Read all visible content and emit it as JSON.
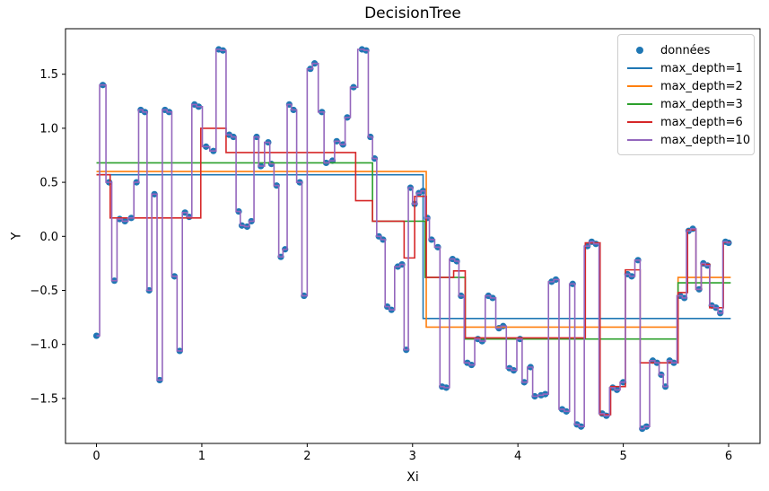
{
  "chart_data": {
    "type": "scatter+step-line",
    "title": "DecisionTree",
    "xlabel": "Xi",
    "ylabel": "Y",
    "x_ticks": [
      0,
      1,
      2,
      3,
      4,
      5,
      6
    ],
    "y_ticks": [
      -1.5,
      -1.0,
      -0.5,
      0.0,
      0.5,
      1.0,
      1.5
    ],
    "xlim": [
      -0.294,
      6.298
    ],
    "ylim": [
      -1.916,
      1.921
    ],
    "grid": false,
    "legend_position": "upper right",
    "scatter": {
      "name": "données",
      "color": "#1f77b4",
      "x": [
        0.0,
        0.06,
        0.12,
        0.17,
        0.22,
        0.27,
        0.33,
        0.38,
        0.42,
        0.46,
        0.5,
        0.55,
        0.6,
        0.65,
        0.69,
        0.74,
        0.79,
        0.84,
        0.88,
        0.93,
        0.97,
        1.04,
        1.11,
        1.16,
        1.2,
        1.26,
        1.3,
        1.35,
        1.38,
        1.43,
        1.47,
        1.52,
        1.56,
        1.63,
        1.66,
        1.71,
        1.75,
        1.79,
        1.83,
        1.87,
        1.93,
        1.97,
        2.03,
        2.07,
        2.14,
        2.18,
        2.24,
        2.28,
        2.34,
        2.38,
        2.44,
        2.52,
        2.56,
        2.6,
        2.64,
        2.68,
        2.72,
        2.76,
        2.8,
        2.86,
        2.9,
        2.94,
        2.98,
        3.02,
        3.06,
        3.1,
        3.14,
        3.18,
        3.24,
        3.28,
        3.32,
        3.38,
        3.42,
        3.46,
        3.52,
        3.56,
        3.62,
        3.66,
        3.72,
        3.76,
        3.82,
        3.86,
        3.92,
        3.96,
        4.02,
        4.06,
        4.12,
        4.16,
        4.22,
        4.26,
        4.32,
        4.36,
        4.42,
        4.46,
        4.52,
        4.56,
        4.6,
        4.66,
        4.7,
        4.74,
        4.8,
        4.84,
        4.9,
        4.94,
        5.0,
        5.04,
        5.08,
        5.14,
        5.18,
        5.22,
        5.28,
        5.32,
        5.36,
        5.4,
        5.44,
        5.48,
        5.54,
        5.58,
        5.62,
        5.66,
        5.72,
        5.76,
        5.8,
        5.84,
        5.88,
        5.92,
        5.97,
        6.0
      ],
      "y": [
        -0.92,
        1.4,
        0.5,
        -0.41,
        0.16,
        0.14,
        0.17,
        0.5,
        1.17,
        1.15,
        -0.5,
        0.39,
        -1.33,
        1.17,
        1.15,
        -0.37,
        -1.06,
        0.22,
        0.18,
        1.22,
        1.2,
        0.83,
        0.79,
        1.73,
        1.72,
        0.94,
        0.92,
        0.23,
        0.1,
        0.09,
        0.14,
        0.92,
        0.65,
        0.87,
        0.67,
        0.47,
        -0.19,
        -0.12,
        1.22,
        1.17,
        0.5,
        -0.55,
        1.55,
        1.6,
        1.15,
        0.68,
        0.7,
        0.88,
        0.85,
        1.1,
        1.38,
        1.73,
        1.72,
        0.92,
        0.72,
        0.0,
        -0.03,
        -0.65,
        -0.68,
        -0.28,
        -0.26,
        -1.05,
        0.45,
        0.3,
        0.4,
        0.42,
        0.17,
        -0.03,
        -0.1,
        -1.39,
        -1.4,
        -0.21,
        -0.23,
        -0.55,
        -1.17,
        -1.19,
        -0.95,
        -0.97,
        -0.55,
        -0.57,
        -0.85,
        -0.83,
        -1.22,
        -1.24,
        -0.95,
        -1.35,
        -1.21,
        -1.48,
        -1.47,
        -1.46,
        -0.42,
        -0.4,
        -1.6,
        -1.62,
        -0.44,
        -1.74,
        -1.76,
        -0.09,
        -0.05,
        -0.07,
        -1.64,
        -1.66,
        -1.4,
        -1.42,
        -1.35,
        -0.35,
        -0.37,
        -0.22,
        -1.78,
        -1.76,
        -1.15,
        -1.17,
        -1.28,
        -1.39,
        -1.15,
        -1.17,
        -0.55,
        -0.57,
        0.05,
        0.07,
        -0.49,
        -0.25,
        -0.27,
        -0.64,
        -0.66,
        -0.71,
        -0.05,
        -0.06
      ]
    },
    "series": [
      {
        "name": "max_depth=1",
        "color": "#1f77b4",
        "segments": [
          [
            0.0,
            3.1,
            0.57
          ],
          [
            3.1,
            6.02,
            -0.76
          ]
        ]
      },
      {
        "name": "max_depth=2",
        "color": "#ff7f0e",
        "segments": [
          [
            0.0,
            3.13,
            0.6
          ],
          [
            3.13,
            5.52,
            -0.84
          ],
          [
            5.52,
            6.02,
            -0.38
          ]
        ]
      },
      {
        "name": "max_depth=3",
        "color": "#2ca02c",
        "segments": [
          [
            0.0,
            2.62,
            0.68
          ],
          [
            2.62,
            3.12,
            0.14
          ],
          [
            3.12,
            3.5,
            -0.38
          ],
          [
            3.5,
            5.52,
            -0.95
          ],
          [
            5.52,
            6.02,
            -0.43
          ]
        ]
      },
      {
        "name": "max_depth=6",
        "color": "#d62728",
        "segments": [
          [
            0.0,
            0.13,
            0.57
          ],
          [
            0.13,
            0.99,
            0.17
          ],
          [
            0.99,
            1.23,
            1.0
          ],
          [
            1.23,
            2.46,
            0.775
          ],
          [
            2.46,
            2.62,
            0.33
          ],
          [
            2.62,
            2.92,
            0.14
          ],
          [
            2.92,
            3.02,
            -0.2
          ],
          [
            3.02,
            3.13,
            0.37
          ],
          [
            3.13,
            3.39,
            -0.38
          ],
          [
            3.39,
            3.5,
            -0.32
          ],
          [
            3.5,
            4.64,
            -0.94
          ],
          [
            4.64,
            4.78,
            -0.06
          ],
          [
            4.78,
            4.88,
            -1.65
          ],
          [
            4.88,
            5.02,
            -1.39
          ],
          [
            5.02,
            5.16,
            -0.31
          ],
          [
            5.16,
            5.52,
            -1.17
          ],
          [
            5.52,
            5.61,
            -0.52
          ],
          [
            5.61,
            5.69,
            0.06
          ],
          [
            5.69,
            5.74,
            -0.49
          ],
          [
            5.74,
            5.82,
            -0.26
          ],
          [
            5.82,
            5.95,
            -0.66
          ],
          [
            5.95,
            6.02,
            -0.055
          ]
        ]
      },
      {
        "name": "max_depth=10",
        "color": "#9467bd",
        "derived": "step_through_scatter"
      }
    ],
    "legend": [
      {
        "label": "données",
        "color": "#1f77b4",
        "marker": "dot"
      },
      {
        "label": "max_depth=1",
        "color": "#1f77b4",
        "marker": "line"
      },
      {
        "label": "max_depth=2",
        "color": "#ff7f0e",
        "marker": "line"
      },
      {
        "label": "max_depth=3",
        "color": "#2ca02c",
        "marker": "line"
      },
      {
        "label": "max_depth=6",
        "color": "#d62728",
        "marker": "line"
      },
      {
        "label": "max_depth=10",
        "color": "#9467bd",
        "marker": "line"
      }
    ],
    "colors": {
      "background": "#ffffff",
      "axes_edge": "#000000",
      "tick_label": "#000000"
    }
  }
}
